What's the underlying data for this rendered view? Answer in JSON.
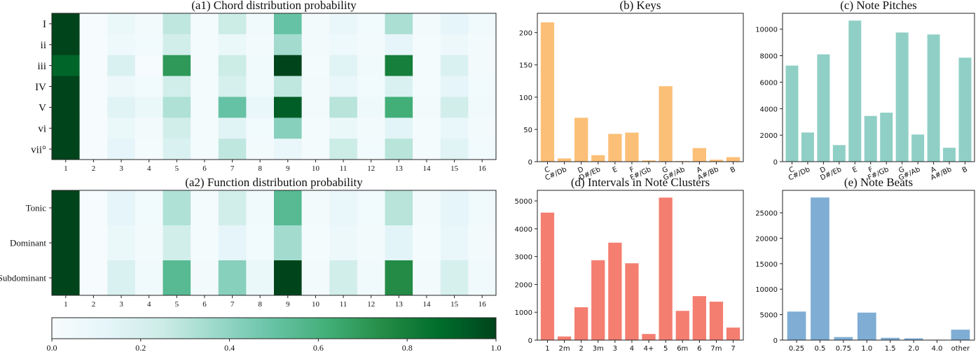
{
  "chart_data": [
    {
      "id": "a1",
      "type": "heatmap",
      "title": "(a1) Chord distribution probability",
      "x": [
        "1",
        "2",
        "3",
        "4",
        "5",
        "6",
        "7",
        "8",
        "9",
        "10",
        "11",
        "12",
        "13",
        "14",
        "15",
        "16"
      ],
      "y": [
        "I",
        "ii",
        "iii",
        "IV",
        "V",
        "vi",
        "vii°"
      ],
      "values": [
        [
          1.0,
          0.01,
          0.08,
          0.03,
          0.28,
          0.02,
          0.25,
          0.05,
          0.5,
          0.03,
          0.1,
          0.04,
          0.33,
          0.03,
          0.12,
          0.05
        ],
        [
          1.0,
          0.01,
          0.06,
          0.04,
          0.22,
          0.02,
          0.08,
          0.03,
          0.35,
          0.03,
          0.06,
          0.03,
          0.12,
          0.02,
          0.07,
          0.03
        ],
        [
          0.9,
          0.01,
          0.18,
          0.01,
          0.7,
          0.02,
          0.25,
          0.05,
          1.0,
          0.02,
          0.15,
          0.05,
          0.8,
          0.02,
          0.18,
          0.03
        ],
        [
          1.0,
          0.01,
          0.07,
          0.04,
          0.22,
          0.02,
          0.2,
          0.05,
          0.28,
          0.03,
          0.1,
          0.04,
          0.18,
          0.02,
          0.12,
          0.04
        ],
        [
          1.0,
          0.01,
          0.15,
          0.08,
          0.32,
          0.02,
          0.5,
          0.1,
          0.92,
          0.03,
          0.3,
          0.06,
          0.62,
          0.03,
          0.22,
          0.05
        ],
        [
          1.0,
          0.01,
          0.08,
          0.03,
          0.22,
          0.02,
          0.15,
          0.04,
          0.42,
          0.02,
          0.08,
          0.03,
          0.14,
          0.02,
          0.1,
          0.03
        ],
        [
          1.0,
          0.01,
          0.12,
          0.02,
          0.18,
          0.02,
          0.28,
          0.03,
          0.1,
          0.02,
          0.25,
          0.04,
          0.3,
          0.02,
          0.15,
          0.04
        ]
      ],
      "vmin": 0,
      "vmax": 1
    },
    {
      "id": "a2",
      "type": "heatmap",
      "title": "(a2) Function distribution probability",
      "x": [
        "1",
        "2",
        "3",
        "4",
        "5",
        "6",
        "7",
        "8",
        "9",
        "10",
        "11",
        "12",
        "13",
        "14",
        "15",
        "16"
      ],
      "y": [
        "Tonic",
        "Dominant",
        "Subdominant"
      ],
      "values": [
        [
          1.0,
          0.01,
          0.12,
          0.04,
          0.32,
          0.02,
          0.22,
          0.05,
          0.55,
          0.03,
          0.1,
          0.04,
          0.3,
          0.03,
          0.12,
          0.05
        ],
        [
          1.0,
          0.01,
          0.08,
          0.03,
          0.22,
          0.02,
          0.12,
          0.04,
          0.35,
          0.02,
          0.07,
          0.03,
          0.14,
          0.02,
          0.1,
          0.03
        ],
        [
          1.0,
          0.01,
          0.18,
          0.05,
          0.55,
          0.03,
          0.42,
          0.08,
          1.0,
          0.03,
          0.22,
          0.05,
          0.75,
          0.03,
          0.2,
          0.05
        ]
      ],
      "vmin": 0,
      "vmax": 1
    },
    {
      "id": "colorbar",
      "type": "colorbar",
      "ticks": [
        "0.0",
        "0.2",
        "0.4",
        "0.6",
        "0.8",
        "1.0"
      ],
      "range": [
        0,
        1
      ]
    },
    {
      "id": "b",
      "type": "bar",
      "title": "(b) Keys",
      "color": "#fbbf77",
      "categories": [
        "C",
        "C#/Db",
        "D",
        "D#/Eb",
        "E",
        "F",
        "F#/Gb",
        "G",
        "G#/Ab",
        "A",
        "A#/Bb",
        "B"
      ],
      "values": [
        216,
        5,
        68,
        10,
        43,
        45,
        2,
        117,
        1,
        21,
        3,
        7
      ],
      "ylim": [
        0,
        230
      ],
      "yticks": [
        0,
        50,
        100,
        150,
        200
      ]
    },
    {
      "id": "c",
      "type": "bar",
      "title": "(c) Note Pitches",
      "color": "#8fcfc6",
      "categories": [
        "C",
        "C#/Db",
        "D",
        "D#/Eb",
        "E",
        "F",
        "F#/Gb",
        "G",
        "G#/Ab",
        "A",
        "A#/Bb",
        "B"
      ],
      "values": [
        7250,
        2200,
        8100,
        1250,
        10650,
        3450,
        3700,
        9750,
        2050,
        9600,
        1050,
        7850
      ],
      "ylim": [
        0,
        11200
      ],
      "yticks": [
        0,
        2000,
        4000,
        6000,
        8000,
        10000
      ]
    },
    {
      "id": "d",
      "type": "bar",
      "title": "(d) Intervals in Note Clusters",
      "color": "#f47e70",
      "categories": [
        "1",
        "2m",
        "2",
        "3m",
        "3",
        "4",
        "4+",
        "5",
        "6m",
        "6",
        "7m",
        "7"
      ],
      "values": [
        4580,
        130,
        1180,
        2870,
        3500,
        2760,
        220,
        5120,
        1050,
        1580,
        1380,
        450
      ],
      "ylim": [
        0,
        5380
      ],
      "yticks": [
        0,
        1000,
        2000,
        3000,
        4000,
        5000
      ]
    },
    {
      "id": "e",
      "type": "bar",
      "title": "(e) Note Beats",
      "color": "#7fadd4",
      "categories": [
        "0.25",
        "0.5",
        "0.75",
        "1.0",
        "1.5",
        "2.0",
        "4.0",
        "other"
      ],
      "values": [
        5600,
        28000,
        600,
        5400,
        450,
        350,
        80,
        2050
      ],
      "ylim": [
        0,
        29400
      ],
      "yticks": [
        0,
        5000,
        10000,
        15000,
        20000,
        25000
      ]
    }
  ]
}
